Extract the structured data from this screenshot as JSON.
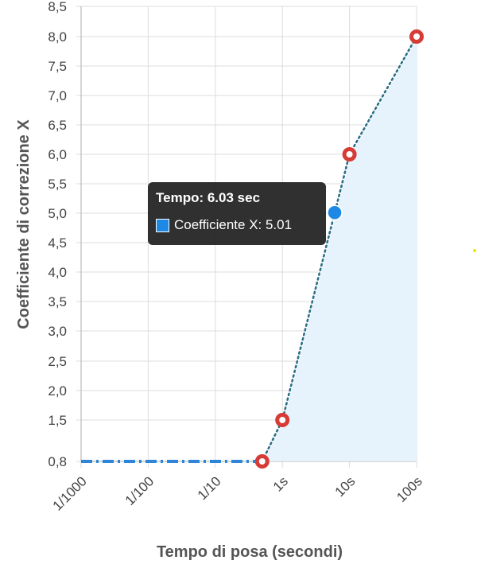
{
  "chart_data": {
    "type": "line",
    "title": "",
    "xlabel": "Tempo di posa (secondi)",
    "ylabel": "Coefficiente di correzione X",
    "x_scale": "log",
    "x_ticks": [
      "1/1000",
      "1/100",
      "1/10",
      "1s",
      "10s",
      "100s"
    ],
    "x_tick_values": [
      0.001,
      0.01,
      0.1,
      1,
      10,
      100
    ],
    "y_ticks": [
      "0,8",
      "1,5",
      "2,0",
      "2,5",
      "3,0",
      "3,5",
      "4,0",
      "4,5",
      "5,0",
      "5,5",
      "6,0",
      "6,5",
      "7,0",
      "7,5",
      "8,0",
      "8,5"
    ],
    "y_tick_values": [
      0.8,
      1.5,
      2.0,
      2.5,
      3.0,
      3.5,
      4.0,
      4.5,
      5.0,
      5.5,
      6.0,
      6.5,
      7.0,
      7.5,
      8.0,
      8.5
    ],
    "ylim": [
      0.8,
      8.5
    ],
    "grid": true,
    "series": [
      {
        "style": "dash-dot",
        "color": "#2f86d9",
        "points": [
          {
            "x": 0.001,
            "y": 0.8
          },
          {
            "x": 0.5,
            "y": 0.8
          }
        ]
      },
      {
        "style": "dotted",
        "color": "#2a6f86",
        "fill": "#e6f2fc",
        "points": [
          {
            "x": 0.5,
            "y": 0.8
          },
          {
            "x": 1,
            "y": 1.5
          },
          {
            "x": 10,
            "y": 6.0
          },
          {
            "x": 100,
            "y": 8.0
          }
        ]
      }
    ],
    "markers": [
      {
        "x": 0.5,
        "y": 0.8,
        "color": "#d63b36"
      },
      {
        "x": 1,
        "y": 1.5,
        "color": "#d63b36"
      },
      {
        "x": 10,
        "y": 6.0,
        "color": "#d63b36"
      },
      {
        "x": 100,
        "y": 8.0,
        "color": "#d63b36"
      }
    ],
    "highlight": {
      "x": 6.03,
      "y": 5.01,
      "color": "#1e88e5"
    },
    "tooltip": {
      "title": "Tempo: 6.03 sec",
      "label": "Coefficiente X: 5.01",
      "swatch_color": "#1e88e5"
    }
  },
  "decoration": {
    "speck_color": "#f2e600"
  }
}
